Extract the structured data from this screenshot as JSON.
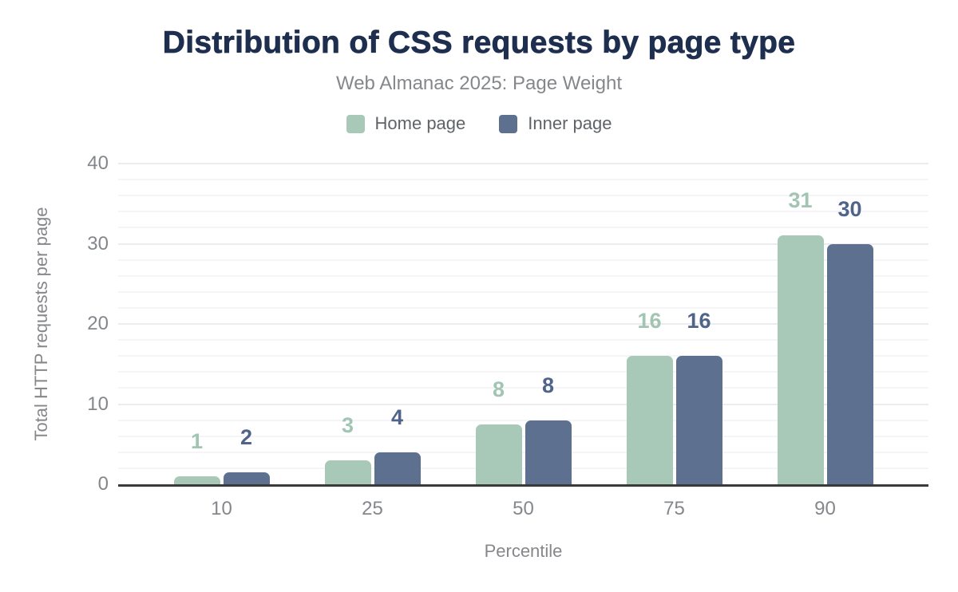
{
  "header": {
    "title": "Distribution of CSS requests by page type",
    "subtitle": "Web Almanac 2025: Page Weight"
  },
  "colors": {
    "title_text": "#1e2e4f",
    "muted_text": "#85878a",
    "tick_text": "#84878c",
    "legend_text": "#5f6368",
    "axis_line": "#3a3a3a",
    "grid_major": "#ececee",
    "grid_minor": "#f5f5f7",
    "home_green": "#a8c9b8",
    "inner_slate": "#5e7090"
  },
  "chart_data": {
    "type": "bar",
    "title": "Distribution of CSS requests by page type",
    "subtitle": "Web Almanac 2025: Page Weight",
    "categories": [
      "10",
      "25",
      "50",
      "75",
      "90"
    ],
    "series": [
      {
        "name": "Home page",
        "color": "#a8c9b8",
        "label_color": "#a2c5b3",
        "values": [
          1,
          3,
          7.5,
          16,
          31
        ],
        "labels": [
          "1",
          "3",
          "8",
          "16",
          "31"
        ]
      },
      {
        "name": "Inner page",
        "color": "#5e7090",
        "label_color": "#50648a",
        "values": [
          1.5,
          4,
          8,
          16,
          30
        ],
        "labels": [
          "2",
          "4",
          "8",
          "16",
          "30"
        ]
      }
    ],
    "xlabel": "Percentile",
    "ylabel": "Total HTTP requests per page",
    "ylim": [
      0,
      40
    ],
    "yticks": [
      0,
      10,
      20,
      30,
      40
    ],
    "grid": {
      "major_step": 10,
      "minor_step": 2,
      "grid_on": true
    },
    "legend_position": "top"
  }
}
